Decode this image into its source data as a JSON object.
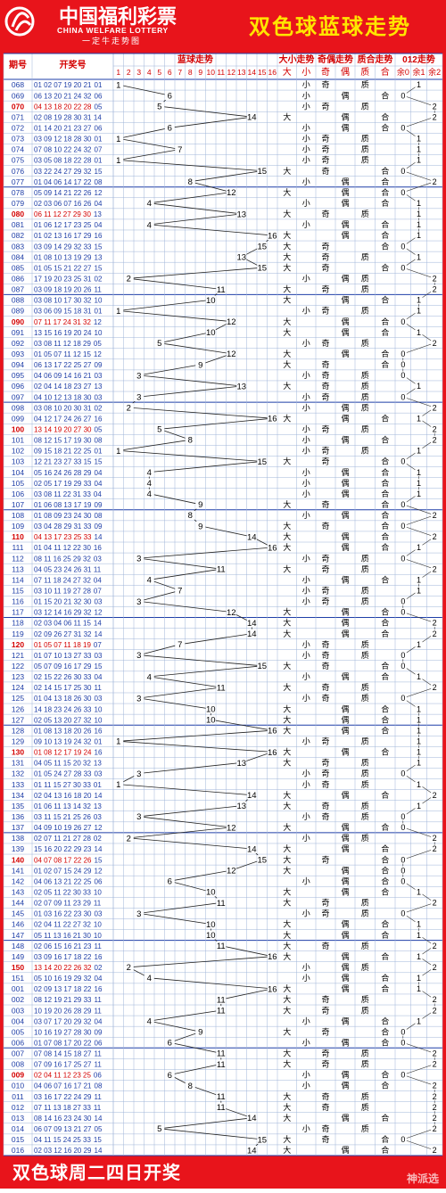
{
  "header": {
    "logo_cn": "中国福利彩票",
    "logo_en": "CHINA WELFARE LOTTERY",
    "logo_slogan": "一定牛走势图",
    "title": "双色球蓝球走势"
  },
  "footer": {
    "caption": "双色球周二四日开奖",
    "watermark": "神派选"
  },
  "columns": {
    "issue": "期号",
    "draw": "开奖号",
    "blue": "蓝球走势",
    "size": "大小走势",
    "parity": "奇偶走势",
    "prime": "质合走势",
    "mod3": "012走势"
  },
  "sub_columns": {
    "size": [
      "大",
      "小"
    ],
    "parity": [
      "奇",
      "偶"
    ],
    "prime": [
      "质",
      "合"
    ],
    "mod3": [
      "余0",
      "余1",
      "余2"
    ]
  },
  "colors": {
    "brand_red": "#e8141b",
    "title_yellow": "#ffe600",
    "issue_blue": "#1f3fa8",
    "highlight_red": "#d40000",
    "grid_blue": "#9fb4d8"
  },
  "chart_data": {
    "type": "line",
    "blue_numbers": [
      "1",
      "2",
      "3",
      "4",
      "5",
      "6",
      "7",
      "8",
      "9",
      "10",
      "11",
      "12",
      "13",
      "14",
      "15",
      "16"
    ],
    "ylim": [
      1,
      16
    ],
    "rows": [
      {
        "issue": "068",
        "reds": "01 02 07 19 20 21",
        "blue": 1
      },
      {
        "issue": "069",
        "reds": "06 13 20 21 24 32",
        "blue": 6
      },
      {
        "issue": "070",
        "reds": "04 13 18 20 22 28",
        "blue": 5
      },
      {
        "issue": "071",
        "reds": "02 08 19 28 30 31",
        "blue": 14
      },
      {
        "issue": "072",
        "reds": "01 14 20 21 23 27",
        "blue": 6
      },
      {
        "issue": "073",
        "reds": "03 09 12 18 28 30",
        "blue": 1
      },
      {
        "issue": "074",
        "reds": "07 08 10 22 24 32",
        "blue": 7
      },
      {
        "issue": "075",
        "reds": "03 05 08 18 22 28",
        "blue": 1
      },
      {
        "issue": "076",
        "reds": "03 22 24 27 29 32",
        "blue": 15
      },
      {
        "issue": "077",
        "reds": "01 04 06 14 17 22",
        "blue": 8
      },
      {
        "issue": "078",
        "reds": "05 09 14 21 22 26",
        "blue": 12
      },
      {
        "issue": "079",
        "reds": "02 03 06 07 16 26",
        "blue": 4
      },
      {
        "issue": "080",
        "reds": "06 11 12 27 29 30",
        "blue": 13
      },
      {
        "issue": "081",
        "reds": "01 06 12 17 23 25",
        "blue": 4
      },
      {
        "issue": "082",
        "reds": "01 02 13 16 17 29",
        "blue": 16
      },
      {
        "issue": "083",
        "reds": "03 09 14 29 32 33",
        "blue": 15
      },
      {
        "issue": "084",
        "reds": "01 08 10 13 19 29",
        "blue": 13
      },
      {
        "issue": "085",
        "reds": "01 05 15 21 22 27",
        "blue": 15
      },
      {
        "issue": "086",
        "reds": "17 19 20 23 25 31",
        "blue": 2
      },
      {
        "issue": "087",
        "reds": "03 09 18 19 20 26",
        "blue": 11
      },
      {
        "issue": "088",
        "reds": "03 08 10 17 30 32",
        "blue": 10
      },
      {
        "issue": "089",
        "reds": "03 06 09 15 18 31",
        "blue": 1
      },
      {
        "issue": "090",
        "reds": "07 11 17 24 31 32",
        "blue": 12
      },
      {
        "issue": "091",
        "reds": "13 15 16 19 20 24",
        "blue": 10
      },
      {
        "issue": "092",
        "reds": "03 08 11 12 18 29",
        "blue": 5
      },
      {
        "issue": "093",
        "reds": "01 05 07 11 12 15",
        "blue": 12
      },
      {
        "issue": "094",
        "reds": "06 13 17 22 25 27",
        "blue": 9
      },
      {
        "issue": "095",
        "reds": "04 06 09 14 16 21",
        "blue": 3
      },
      {
        "issue": "096",
        "reds": "02 04 14 18 23 27",
        "blue": 13
      },
      {
        "issue": "097",
        "reds": "04 10 12 13 18 30",
        "blue": 3
      },
      {
        "issue": "098",
        "reds": "03 08 10 20 30 31",
        "blue": 2
      },
      {
        "issue": "099",
        "reds": "04 12 17 24 26 27",
        "blue": 16
      },
      {
        "issue": "100",
        "reds": "13 14 19 20 27 30",
        "blue": 5
      },
      {
        "issue": "101",
        "reds": "08 12 15 17 19 30",
        "blue": 8
      },
      {
        "issue": "102",
        "reds": "09 15 18 21 22 25",
        "blue": 1
      },
      {
        "issue": "103",
        "reds": "12 21 23 27 33 15",
        "blue": 15
      },
      {
        "issue": "104",
        "reds": "05 16 24 26 28 29",
        "blue": 4
      },
      {
        "issue": "105",
        "reds": "02 05 17 19 29 33",
        "blue": 4
      },
      {
        "issue": "106",
        "reds": "03 08 11 22 31 33",
        "blue": 4
      },
      {
        "issue": "107",
        "reds": "01 06 08 13 17 19",
        "blue": 9
      },
      {
        "issue": "108",
        "reds": "01 08 09 23 24 30",
        "blue": 8
      },
      {
        "issue": "109",
        "reds": "03 04 28 29 31 33",
        "blue": 9
      },
      {
        "issue": "110",
        "reds": "04 13 17 23 25 33",
        "blue": 14
      },
      {
        "issue": "111",
        "reds": "01 04 11 12 22 30",
        "blue": 16
      },
      {
        "issue": "112",
        "reds": "08 11 16 25 29 32",
        "blue": 3
      },
      {
        "issue": "113",
        "reds": "04 05 23 24 26 31",
        "blue": 11
      },
      {
        "issue": "114",
        "reds": "07 11 18 24 27 32",
        "blue": 4
      },
      {
        "issue": "115",
        "reds": "03 10 11 19 27 28",
        "blue": 7
      },
      {
        "issue": "116",
        "reds": "01 15 20 21 32 30",
        "blue": 3
      },
      {
        "issue": "117",
        "reds": "03 12 14 16 29 32",
        "blue": 12
      },
      {
        "issue": "118",
        "reds": "02 03 04 06 11 15",
        "blue": 14
      },
      {
        "issue": "119",
        "reds": "02 09 26 27 31 32",
        "blue": 14
      },
      {
        "issue": "120",
        "reds": "01 05 07 11 18 19",
        "blue": 7
      },
      {
        "issue": "121",
        "reds": "01 07 10 13 27 33",
        "blue": 3
      },
      {
        "issue": "122",
        "reds": "05 07 09 16 17 29",
        "blue": 15
      },
      {
        "issue": "123",
        "reds": "02 15 22 26 30 33",
        "blue": 4
      },
      {
        "issue": "124",
        "reds": "02 14 15 17 25 30",
        "blue": 11
      },
      {
        "issue": "125",
        "reds": "01 04 13 18 26 30",
        "blue": 3
      },
      {
        "issue": "126",
        "reds": "14 18 23 24 26 33",
        "blue": 10
      },
      {
        "issue": "127",
        "reds": "02 05 13 20 27 32",
        "blue": 10
      },
      {
        "issue": "128",
        "reds": "01 08 13 18 20 26",
        "blue": 16
      },
      {
        "issue": "129",
        "reds": "09 10 13 19 24 32",
        "blue": 1
      },
      {
        "issue": "130",
        "reds": "01 08 12 17 19 24",
        "blue": 16
      },
      {
        "issue": "131",
        "reds": "04 05 11 15 20 32",
        "blue": 13
      },
      {
        "issue": "132",
        "reds": "01 05 24 27 28 33",
        "blue": 3
      },
      {
        "issue": "133",
        "reds": "01 11 15 27 30 33",
        "blue": 1
      },
      {
        "issue": "134",
        "reds": "02 04 13 16 18 20",
        "blue": 14
      },
      {
        "issue": "135",
        "reds": "01 06 11 13 14 32",
        "blue": 13
      },
      {
        "issue": "136",
        "reds": "03 11 15 21 25 26",
        "blue": 3
      },
      {
        "issue": "137",
        "reds": "04 09 10 19 26 27",
        "blue": 12
      },
      {
        "issue": "138",
        "reds": "02 07 11 21 27 28",
        "blue": 2
      },
      {
        "issue": "139",
        "reds": "15 16 20 22 29 23",
        "blue": 14
      },
      {
        "issue": "140",
        "reds": "04 07 08 17 22 26",
        "blue": 15
      },
      {
        "issue": "141",
        "reds": "01 02 07 15 24 29",
        "blue": 12
      },
      {
        "issue": "142",
        "reds": "04 06 13 21 22 25",
        "blue": 6
      },
      {
        "issue": "143",
        "reds": "02 05 11 22 30 33",
        "blue": 10
      },
      {
        "issue": "144",
        "reds": "02 07 09 11 23 29",
        "blue": 11
      },
      {
        "issue": "145",
        "reds": "01 03 16 22 23 30",
        "blue": 3
      },
      {
        "issue": "146",
        "reds": "02 04 11 22 27 32",
        "blue": 10
      },
      {
        "issue": "147",
        "reds": "05 11 13 16 21 30",
        "blue": 10
      },
      {
        "issue": "148",
        "reds": "02 06 15 16 21 23",
        "blue": 11
      },
      {
        "issue": "149",
        "reds": "03 09 16 17 18 22",
        "blue": 16
      },
      {
        "issue": "150",
        "reds": "13 14 20 22 26 32",
        "blue": 2
      },
      {
        "issue": "151",
        "reds": "05 10 16 19 29 32",
        "blue": 4
      },
      {
        "issue": "001",
        "reds": "02 09 13 17 18 22",
        "blue": 16
      },
      {
        "issue": "002",
        "reds": "08 12 19 21 29 33",
        "blue": 11
      },
      {
        "issue": "003",
        "reds": "10 19 20 26 28 29",
        "blue": 11
      },
      {
        "issue": "004",
        "reds": "03 07 17 20 29 32",
        "blue": 4
      },
      {
        "issue": "005",
        "reds": "10 16 19 27 28 30",
        "blue": 9
      },
      {
        "issue": "006",
        "reds": "01 07 08 17 20 22",
        "blue": 6
      },
      {
        "issue": "007",
        "reds": "07 08 14 15 18 27",
        "blue": 11
      },
      {
        "issue": "008",
        "reds": "07 09 16 17 25 27",
        "blue": 11
      },
      {
        "issue": "009",
        "reds": "02 04 11 12 23 25",
        "blue": 6
      },
      {
        "issue": "010",
        "reds": "04 06 07 16 17 21",
        "blue": 8
      },
      {
        "issue": "011",
        "reds": "03 16 17 22 24 29",
        "blue": 11
      },
      {
        "issue": "012",
        "reds": "07 11 13 18 27 33",
        "blue": 11
      },
      {
        "issue": "013",
        "reds": "08 14 16 23 24 30",
        "blue": 14
      },
      {
        "issue": "014",
        "reds": "06 07 09 13 21 27",
        "blue": 5
      },
      {
        "issue": "015",
        "reds": "04 11 15 24 25 33",
        "blue": 15
      },
      {
        "issue": "016",
        "reds": "02 03 12 16 20 29",
        "blue": 14
      }
    ]
  }
}
